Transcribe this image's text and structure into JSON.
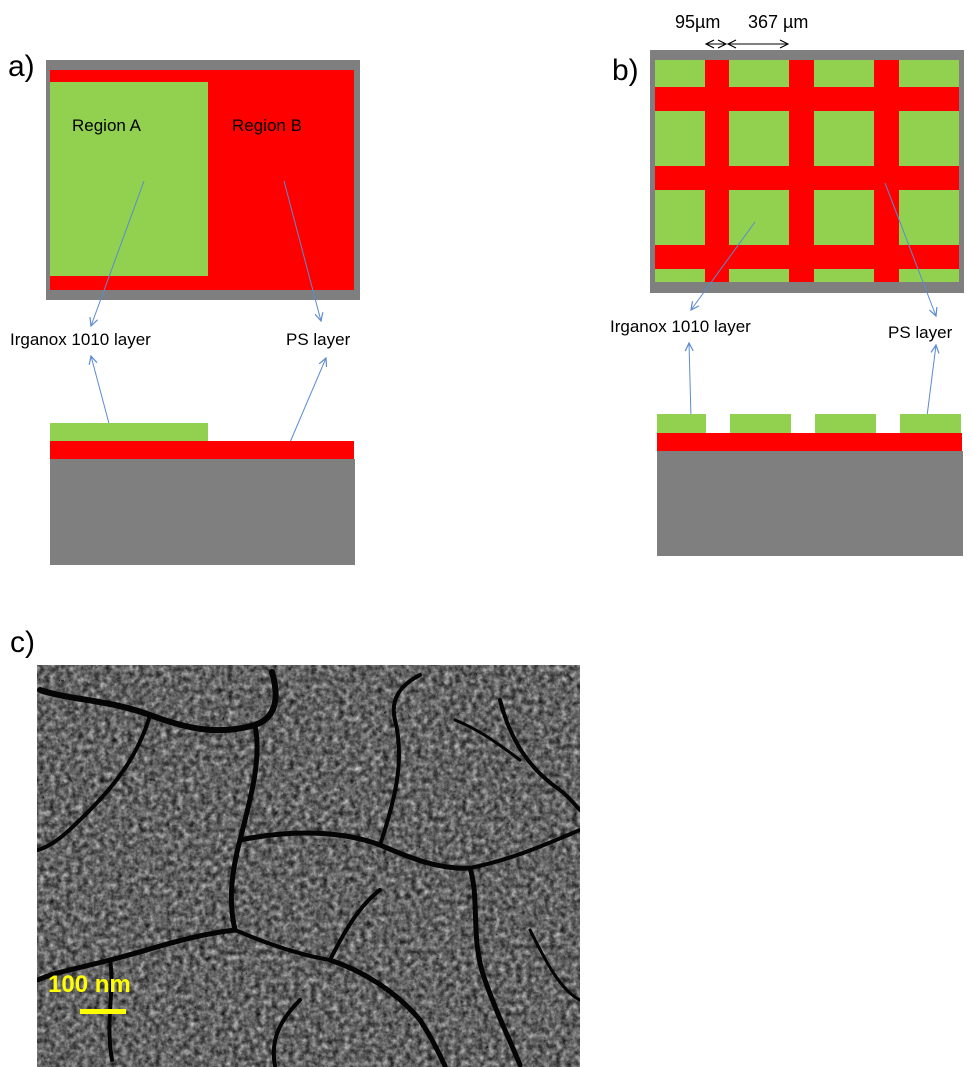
{
  "colors": {
    "irganox": "#92d050",
    "ps": "#ff0000",
    "substrate": "#7f7f7f",
    "arrow": "#5b8bd0",
    "scalebar": "#ffff00",
    "sem_background": "#0a0a0a"
  },
  "panel_a": {
    "label": "a)",
    "region_a": "Region A",
    "region_b": "Region B",
    "irganox_label": "Irganox 1010 layer",
    "ps_label": "PS layer"
  },
  "panel_b": {
    "label": "b)",
    "dim_small": "95µm",
    "dim_large": "367 µm",
    "irganox_label": "Irganox 1010 layer",
    "ps_label": "PS layer"
  },
  "panel_c": {
    "label": "c)",
    "scale_label": "100 nm",
    "image": "SEM micrograph"
  },
  "icons": {
    "dimension_arrow": "double-headed-arrow-icon",
    "pointer_arrow": "arrow-icon"
  }
}
